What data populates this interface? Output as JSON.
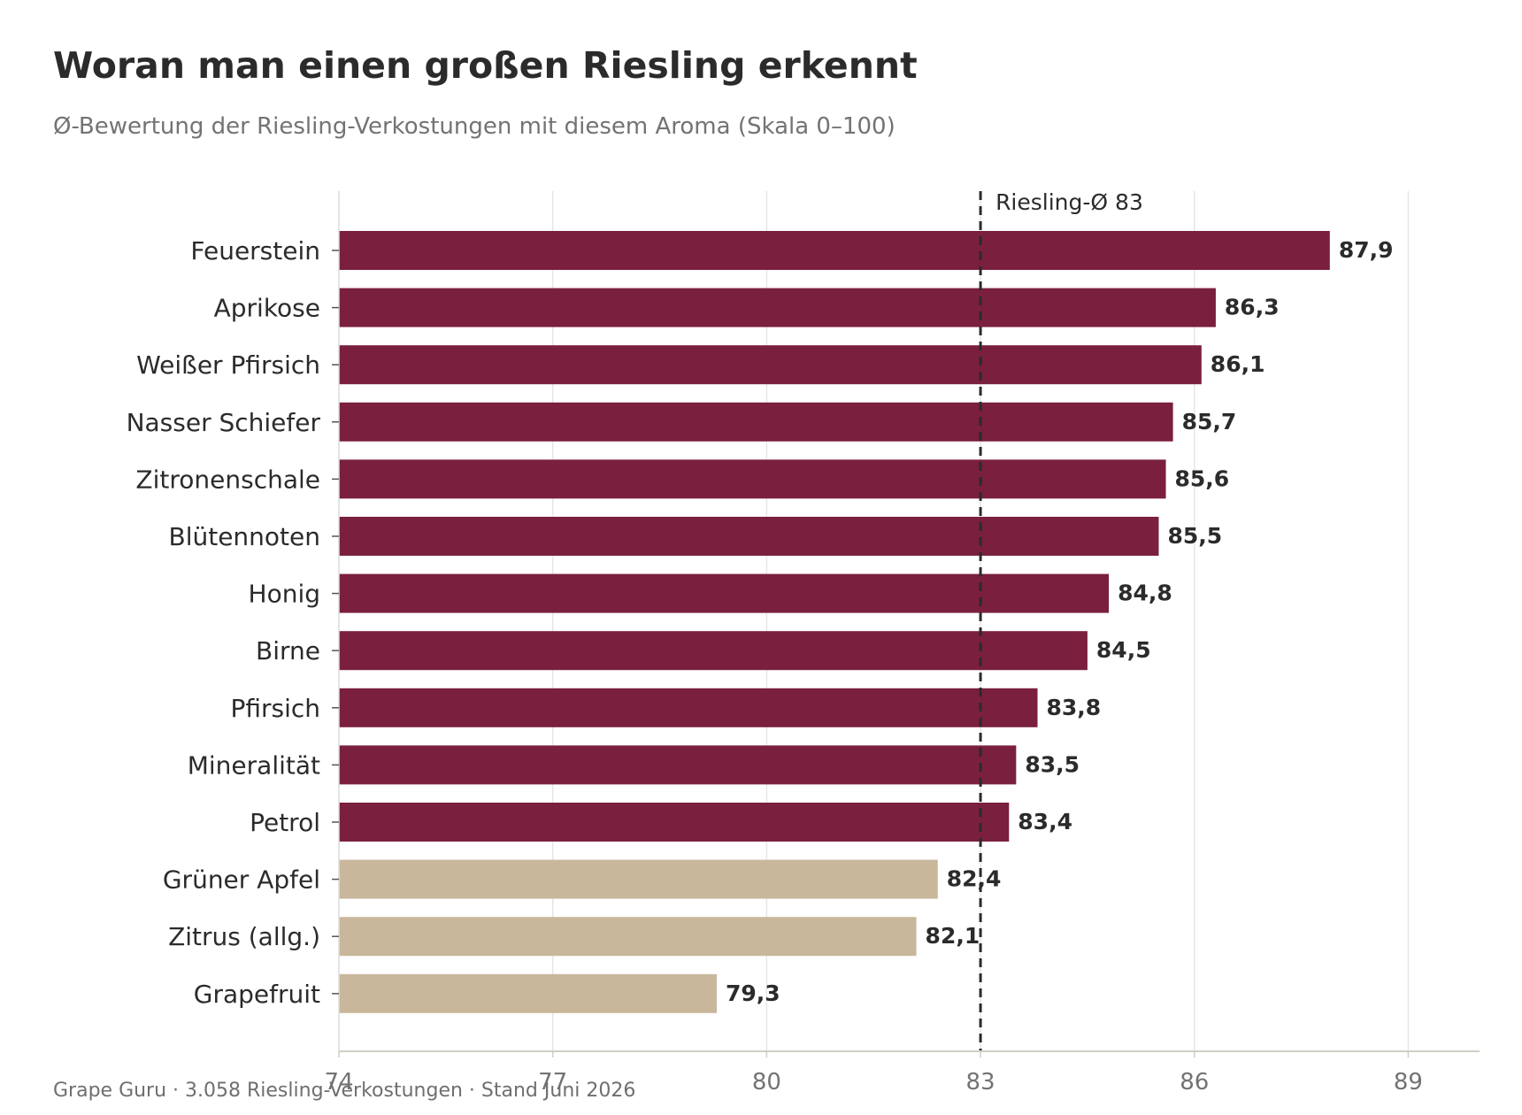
{
  "header": {
    "title": "Woran man einen großen Riesling erkennt",
    "subtitle": "Ø-Bewertung der Riesling-Verkostungen mit diesem Aroma (Skala 0–100)"
  },
  "footer": {
    "source": "Grape Guru · 3.058 Riesling-Verkostungen · Stand Juni 2026"
  },
  "chart_data": {
    "type": "bar",
    "orientation": "horizontal",
    "title": "Woran man einen großen Riesling erkennt",
    "subtitle": "Ø-Bewertung der Riesling-Verkostungen mit diesem Aroma (Skala 0–100)",
    "categories": [
      "Feuerstein",
      "Aprikose",
      "Weißer Pfirsich",
      "Nasser Schiefer",
      "Zitronenschale",
      "Blütennoten",
      "Honig",
      "Birne",
      "Pfirsich",
      "Mineralität",
      "Petrol",
      "Grüner Apfel",
      "Zitrus (allg.)",
      "Grapefruit"
    ],
    "values": [
      87.9,
      86.3,
      86.1,
      85.7,
      85.6,
      85.5,
      84.8,
      84.5,
      83.8,
      83.5,
      83.4,
      82.4,
      82.1,
      79.3
    ],
    "value_labels": [
      "87,9",
      "86,3",
      "86,1",
      "85,7",
      "85,6",
      "85,5",
      "84,8",
      "84,5",
      "83,8",
      "83,5",
      "83,4",
      "82,4",
      "82,1",
      "79,3"
    ],
    "xlim": [
      74,
      90
    ],
    "xticks": [
      74,
      77,
      80,
      83,
      86,
      89
    ],
    "xlabel": "",
    "ylabel": "",
    "grid": true,
    "reference_line": {
      "value": 83,
      "label": "Riesling-Ø 83",
      "style": "dashed"
    },
    "colors": {
      "above_average": "#7a1f3d",
      "below_average": "#c9b79c",
      "reference": "#2b2b2b",
      "grid": "#e6e6e6"
    }
  }
}
